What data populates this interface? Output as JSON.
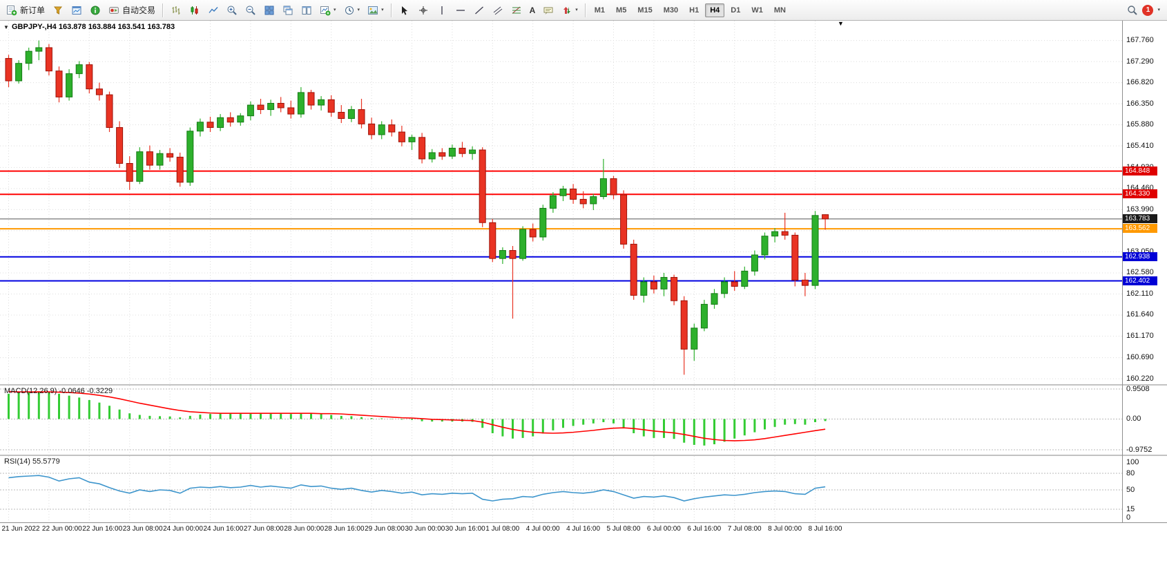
{
  "toolbar": {
    "new_order_label": "新订单",
    "autotrading_label": "自动交易",
    "timeframes": [
      "M1",
      "M5",
      "M15",
      "M30",
      "H1",
      "H4",
      "D1",
      "W1",
      "MN"
    ],
    "active_timeframe": "H4",
    "notification_count": "1"
  },
  "chart": {
    "title": "GBPJPY-,H4",
    "ohlc_text": "163.878 163.884 163.541 163.783",
    "macd_label": "MACD(12,26,9)",
    "macd_values": "-0.0646 -0.3229",
    "rsi_label": "RSI(14)",
    "rsi_value": "55.5779",
    "price_axis_labels": [
      "167.760",
      "167.290",
      "166.820",
      "166.350",
      "165.880",
      "165.410",
      "164.930",
      "164.460",
      "163.990",
      "163.520",
      "163.050",
      "162.580",
      "162.110",
      "161.640",
      "161.170",
      "160.690",
      "160.220"
    ],
    "macd_axis_labels": [
      "0.9508",
      "0.00",
      "-0.9752"
    ],
    "rsi_axis_labels": [
      "100",
      "80",
      "50",
      "15",
      "0"
    ],
    "time_axis_labels": [
      "21 Jun 2022",
      "22 Jun 00:00",
      "22 Jun 16:00",
      "23 Jun 08:00",
      "24 Jun 00:00",
      "24 Jun 16:00",
      "27 Jun 08:00",
      "28 Jun 00:00",
      "28 Jun 16:00",
      "29 Jun 08:00",
      "30 Jun 00:00",
      "30 Jun 16:00",
      "1 Jul 08:00",
      "4 Jul 00:00",
      "4 Jul 16:00",
      "5 Jul 08:00",
      "6 Jul 00:00",
      "6 Jul 16:00",
      "7 Jul 08:00",
      "8 Jul 00:00",
      "8 Jul 16:00"
    ],
    "price_badges": [
      {
        "label": "164.848",
        "price": 164.848,
        "bg": "#df0000",
        "fg": "#ffffff"
      },
      {
        "label": "164.330",
        "price": 164.33,
        "bg": "#df0000",
        "fg": "#ffffff"
      },
      {
        "label": "163.783",
        "price": 163.783,
        "bg": "#1a1a1a",
        "fg": "#ffffff"
      },
      {
        "label": "163.562",
        "price": 163.562,
        "bg": "#ff9900",
        "fg": "#ffffff"
      },
      {
        "label": "162.938",
        "price": 162.938,
        "bg": "#0000d6",
        "fg": "#ffffff"
      },
      {
        "label": "162.402",
        "price": 162.402,
        "bg": "#0000d6",
        "fg": "#ffffff"
      }
    ]
  },
  "chart_data": {
    "type": "candlestick",
    "symbol": "GBPJPY-",
    "timeframe": "H4",
    "current_ohlc": {
      "open": 163.878,
      "high": 163.884,
      "low": 163.541,
      "close": 163.783
    },
    "ylim": [
      160.1,
      168.2
    ],
    "grid_step_candles": 4,
    "candles": [
      [
        167.36,
        167.44,
        166.72,
        166.86
      ],
      [
        166.86,
        167.32,
        166.8,
        167.25
      ],
      [
        167.25,
        167.6,
        167.1,
        167.52
      ],
      [
        167.52,
        167.76,
        167.32,
        167.6
      ],
      [
        167.6,
        167.68,
        166.98,
        167.08
      ],
      [
        167.08,
        167.18,
        166.38,
        166.5
      ],
      [
        166.5,
        167.12,
        166.42,
        167.02
      ],
      [
        167.02,
        167.3,
        166.92,
        167.22
      ],
      [
        167.22,
        167.28,
        166.58,
        166.68
      ],
      [
        166.68,
        166.82,
        166.42,
        166.55
      ],
      [
        166.55,
        166.62,
        165.72,
        165.82
      ],
      [
        165.82,
        165.96,
        164.92,
        165.02
      ],
      [
        165.02,
        165.18,
        164.43,
        164.62
      ],
      [
        164.62,
        165.38,
        164.56,
        165.28
      ],
      [
        165.28,
        165.42,
        164.88,
        164.98
      ],
      [
        164.98,
        165.32,
        164.88,
        165.24
      ],
      [
        165.24,
        165.36,
        165.06,
        165.16
      ],
      [
        165.16,
        165.26,
        164.5,
        164.6
      ],
      [
        164.6,
        165.82,
        164.52,
        165.74
      ],
      [
        165.74,
        166.02,
        165.62,
        165.94
      ],
      [
        165.94,
        166.06,
        165.72,
        165.82
      ],
      [
        165.82,
        166.12,
        165.74,
        166.04
      ],
      [
        166.04,
        166.16,
        165.84,
        165.94
      ],
      [
        165.94,
        166.14,
        165.86,
        166.08
      ],
      [
        166.08,
        166.4,
        165.98,
        166.32
      ],
      [
        166.32,
        166.46,
        166.12,
        166.22
      ],
      [
        166.22,
        166.44,
        166.08,
        166.36
      ],
      [
        166.36,
        166.5,
        166.16,
        166.26
      ],
      [
        166.26,
        166.42,
        166.02,
        166.12
      ],
      [
        166.12,
        166.72,
        166.04,
        166.6
      ],
      [
        166.6,
        166.66,
        166.22,
        166.32
      ],
      [
        166.32,
        166.52,
        166.2,
        166.44
      ],
      [
        166.44,
        166.54,
        166.06,
        166.16
      ],
      [
        166.16,
        166.32,
        165.92,
        166.02
      ],
      [
        166.02,
        166.3,
        165.94,
        166.22
      ],
      [
        166.22,
        166.46,
        165.8,
        165.9
      ],
      [
        165.9,
        166.04,
        165.56,
        165.66
      ],
      [
        165.66,
        165.96,
        165.56,
        165.88
      ],
      [
        165.88,
        166.0,
        165.62,
        165.72
      ],
      [
        165.72,
        165.86,
        165.4,
        165.5
      ],
      [
        165.5,
        165.66,
        165.32,
        165.6
      ],
      [
        165.6,
        165.7,
        165.02,
        165.12
      ],
      [
        165.12,
        165.34,
        165.04,
        165.26
      ],
      [
        165.26,
        165.36,
        165.1,
        165.18
      ],
      [
        165.18,
        165.44,
        165.12,
        165.36
      ],
      [
        165.36,
        165.5,
        165.16,
        165.24
      ],
      [
        165.24,
        165.4,
        165.1,
        165.32
      ],
      [
        165.32,
        165.38,
        163.6,
        163.7
      ],
      [
        163.7,
        163.78,
        162.82,
        162.9
      ],
      [
        162.9,
        163.15,
        162.78,
        163.08
      ],
      [
        163.08,
        163.18,
        161.56,
        162.9
      ],
      [
        162.9,
        163.62,
        162.85,
        163.55
      ],
      [
        163.55,
        163.68,
        163.28,
        163.38
      ],
      [
        163.38,
        164.1,
        163.3,
        164.02
      ],
      [
        164.02,
        164.38,
        163.92,
        164.3
      ],
      [
        164.3,
        164.52,
        164.18,
        164.45
      ],
      [
        164.45,
        164.56,
        164.12,
        164.22
      ],
      [
        164.22,
        164.4,
        164.02,
        164.12
      ],
      [
        164.12,
        164.34,
        163.98,
        164.28
      ],
      [
        164.28,
        165.12,
        164.22,
        164.68
      ],
      [
        164.68,
        164.74,
        164.22,
        164.32
      ],
      [
        164.32,
        164.42,
        163.12,
        163.22
      ],
      [
        163.22,
        163.32,
        161.98,
        162.08
      ],
      [
        162.08,
        162.48,
        161.92,
        162.38
      ],
      [
        162.38,
        162.52,
        162.12,
        162.22
      ],
      [
        162.22,
        162.58,
        162.06,
        162.48
      ],
      [
        162.48,
        162.54,
        161.86,
        161.96
      ],
      [
        161.96,
        162.06,
        160.31,
        160.88
      ],
      [
        160.88,
        161.45,
        160.62,
        161.35
      ],
      [
        161.35,
        161.98,
        161.28,
        161.88
      ],
      [
        161.88,
        162.22,
        161.78,
        162.12
      ],
      [
        162.12,
        162.48,
        162.02,
        162.38
      ],
      [
        162.38,
        162.62,
        162.18,
        162.28
      ],
      [
        162.28,
        162.72,
        162.22,
        162.62
      ],
      [
        162.62,
        163.08,
        162.52,
        162.98
      ],
      [
        162.98,
        163.48,
        162.88,
        163.4
      ],
      [
        163.4,
        163.58,
        163.26,
        163.5
      ],
      [
        163.5,
        163.92,
        163.32,
        163.42
      ],
      [
        163.42,
        163.48,
        162.28,
        162.42
      ],
      [
        162.42,
        162.58,
        162.06,
        162.3
      ],
      [
        162.3,
        163.96,
        162.22,
        163.86
      ],
      [
        163.878,
        163.884,
        163.541,
        163.783
      ]
    ],
    "hlines": [
      {
        "price": 164.848,
        "color": "#ff0000",
        "width": 2
      },
      {
        "price": 164.33,
        "color": "#ff0000",
        "width": 2
      },
      {
        "price": 163.783,
        "color": "#555555",
        "width": 1
      },
      {
        "price": 163.562,
        "color": "#ff9900",
        "width": 2
      },
      {
        "price": 162.938,
        "color": "#0000e0",
        "width": 2
      },
      {
        "price": 162.402,
        "color": "#0000e0",
        "width": 2
      }
    ],
    "macd": {
      "ylim": [
        -0.9752,
        0.9508
      ],
      "histogram": [
        0.8,
        0.83,
        0.86,
        0.88,
        0.85,
        0.8,
        0.74,
        0.68,
        0.6,
        0.52,
        0.42,
        0.3,
        0.18,
        0.13,
        0.1,
        0.09,
        0.08,
        0.05,
        0.1,
        0.14,
        0.16,
        0.17,
        0.18,
        0.18,
        0.19,
        0.19,
        0.19,
        0.18,
        0.16,
        0.18,
        0.17,
        0.16,
        0.13,
        0.1,
        0.09,
        0.06,
        0.03,
        0.02,
        0.01,
        -0.02,
        -0.03,
        -0.07,
        -0.08,
        -0.08,
        -0.08,
        -0.08,
        -0.09,
        -0.28,
        -0.45,
        -0.55,
        -0.62,
        -0.6,
        -0.55,
        -0.46,
        -0.36,
        -0.28,
        -0.22,
        -0.18,
        -0.14,
        -0.1,
        -0.14,
        -0.28,
        -0.45,
        -0.55,
        -0.6,
        -0.6,
        -0.63,
        -0.75,
        -0.82,
        -0.84,
        -0.8,
        -0.72,
        -0.62,
        -0.52,
        -0.42,
        -0.33,
        -0.25,
        -0.18,
        -0.16,
        -0.18,
        -0.1,
        -0.0646
      ],
      "signal": [
        0.87,
        0.86,
        0.86,
        0.86,
        0.86,
        0.85,
        0.84,
        0.82,
        0.79,
        0.75,
        0.7,
        0.64,
        0.57,
        0.5,
        0.44,
        0.38,
        0.32,
        0.27,
        0.23,
        0.21,
        0.19,
        0.18,
        0.18,
        0.18,
        0.18,
        0.18,
        0.18,
        0.18,
        0.18,
        0.18,
        0.18,
        0.17,
        0.17,
        0.16,
        0.14,
        0.12,
        0.1,
        0.08,
        0.06,
        0.04,
        0.03,
        0.01,
        -0.01,
        -0.02,
        -0.03,
        -0.04,
        -0.05,
        -0.1,
        -0.18,
        -0.26,
        -0.33,
        -0.38,
        -0.42,
        -0.44,
        -0.45,
        -0.44,
        -0.42,
        -0.39,
        -0.36,
        -0.32,
        -0.29,
        -0.28,
        -0.3,
        -0.34,
        -0.38,
        -0.41,
        -0.44,
        -0.49,
        -0.55,
        -0.61,
        -0.65,
        -0.68,
        -0.69,
        -0.68,
        -0.66,
        -0.62,
        -0.57,
        -0.52,
        -0.47,
        -0.42,
        -0.37,
        -0.3229
      ]
    },
    "rsi": {
      "ylim": [
        0,
        100
      ],
      "levels": [
        80,
        50,
        15
      ],
      "values": [
        72,
        74,
        75,
        76,
        73,
        66,
        70,
        72,
        64,
        61,
        54,
        48,
        44,
        50,
        47,
        50,
        49,
        44,
        53,
        55,
        54,
        56,
        54,
        55,
        58,
        55,
        57,
        55,
        53,
        59,
        56,
        57,
        53,
        51,
        53,
        49,
        46,
        49,
        47,
        44,
        46,
        41,
        43,
        42,
        44,
        43,
        44,
        33,
        30,
        33,
        34,
        38,
        37,
        42,
        45,
        47,
        45,
        44,
        46,
        50,
        47,
        41,
        35,
        38,
        37,
        39,
        36,
        30,
        34,
        37,
        39,
        41,
        40,
        42,
        45,
        47,
        48,
        47,
        43,
        42,
        53,
        55.5779
      ]
    },
    "colors": {
      "up": "#2db02c",
      "down": "#e93323",
      "macd_hist": "#33cc33",
      "macd_signal": "#ff0000",
      "rsi_line": "#3d95cc",
      "grid": "#dcdcdc",
      "level": "#b8b8b8"
    }
  }
}
